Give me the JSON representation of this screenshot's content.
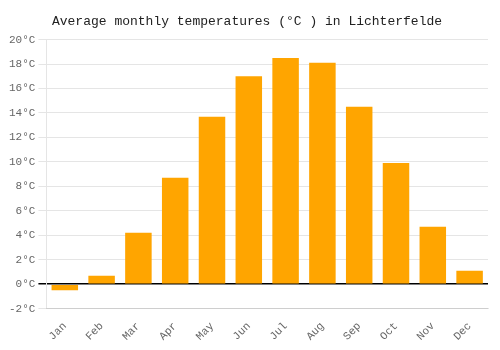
{
  "chart_data": {
    "type": "bar",
    "title": "Average monthly temperatures (°C ) in Lichterfelde",
    "categories": [
      "Jan",
      "Feb",
      "Mar",
      "Apr",
      "May",
      "Jun",
      "Jul",
      "Aug",
      "Sep",
      "Oct",
      "Nov",
      "Dec"
    ],
    "values": [
      -0.5,
      0.7,
      4.2,
      8.7,
      13.7,
      17.0,
      18.5,
      18.1,
      14.5,
      9.9,
      4.7,
      1.1
    ],
    "color": "#FFA500",
    "ylim": [
      -2,
      20
    ],
    "yticks": [
      {
        "value": -2,
        "label": "-2°C"
      },
      {
        "value": 0,
        "label": "0°C"
      },
      {
        "value": 2,
        "label": "2°C"
      },
      {
        "value": 4,
        "label": "4°C"
      },
      {
        "value": 6,
        "label": "6°C"
      },
      {
        "value": 8,
        "label": "8°C"
      },
      {
        "value": 10,
        "label": "10°C"
      },
      {
        "value": 12,
        "label": "12°C"
      },
      {
        "value": 14,
        "label": "14°C"
      },
      {
        "value": 16,
        "label": "16°C"
      },
      {
        "value": 18,
        "label": "18°C"
      },
      {
        "value": 20,
        "label": "20°C"
      }
    ],
    "grid": true
  }
}
